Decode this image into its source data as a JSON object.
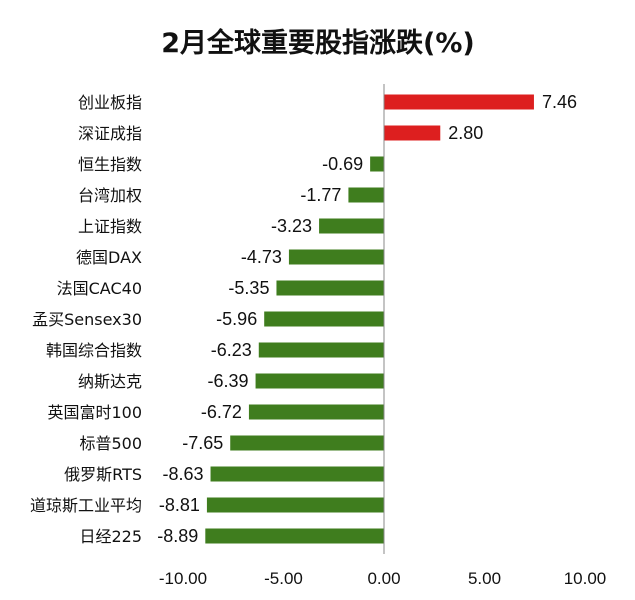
{
  "chart_data": {
    "type": "bar",
    "orientation": "horizontal",
    "title": "2月全球重要股指涨跌(%)",
    "categories": [
      "创业板指",
      "深证成指",
      "恒生指数",
      "台湾加权",
      "上证指数",
      "德国DAX",
      "法国CAC40",
      "孟买Sensex30",
      "韩国综合指数",
      "纳斯达克",
      "英国富时100",
      "标普500",
      "俄罗斯RTS",
      "道琼斯工业平均",
      "日经225"
    ],
    "values": [
      7.46,
      2.8,
      -0.69,
      -1.77,
      -3.23,
      -4.73,
      -5.35,
      -5.96,
      -6.23,
      -6.39,
      -6.72,
      -7.65,
      -8.63,
      -8.81,
      -8.89
    ],
    "value_labels": [
      "7.46",
      "2.80",
      "-0.69",
      "-1.77",
      "-3.23",
      "-4.73",
      "-5.35",
      "-5.96",
      "-6.23",
      "-6.39",
      "-6.72",
      "-7.65",
      "-8.63",
      "-8.81",
      "-8.89"
    ],
    "xlim": [
      -10,
      10
    ],
    "x_ticks": [
      -10,
      -5,
      0,
      5,
      10
    ],
    "x_tick_labels": [
      "-10.00",
      "-5.00",
      "0.00",
      "5.00",
      "10.00"
    ],
    "xlabel": "",
    "ylabel": "",
    "grid": false,
    "legend": "none",
    "colors": {
      "positive": "#dd1f1f",
      "negative": "#3f7d1e",
      "axis": "#888888"
    }
  }
}
